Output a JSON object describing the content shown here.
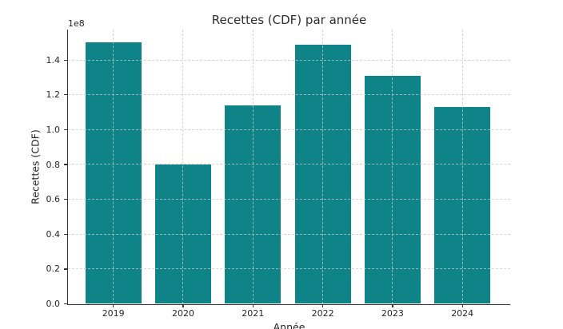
{
  "chart_data": {
    "type": "bar",
    "title": "Recettes (CDF) par année",
    "xlabel": "Année",
    "ylabel": "Recettes (CDF)",
    "y_offset_label": "1e8",
    "categories": [
      "2019",
      "2020",
      "2021",
      "2022",
      "2023",
      "2024"
    ],
    "values": [
      150000000,
      80000000,
      114000000,
      149000000,
      131000000,
      113000000
    ],
    "ylim": [
      0,
      157500000
    ],
    "ytick_step": 20000000,
    "ytick_labels": [
      "0.0",
      "0.2",
      "0.4",
      "0.6",
      "0.8",
      "1.0",
      "1.2",
      "1.4"
    ],
    "grid": true,
    "grid_style": "dashed, drawn above bars",
    "legend_position": "none",
    "colors": {
      "bar": "#0e8488",
      "axis": "#333333",
      "text": "#262626",
      "grid": "#c9c9c9",
      "background": "#ffffff"
    }
  }
}
